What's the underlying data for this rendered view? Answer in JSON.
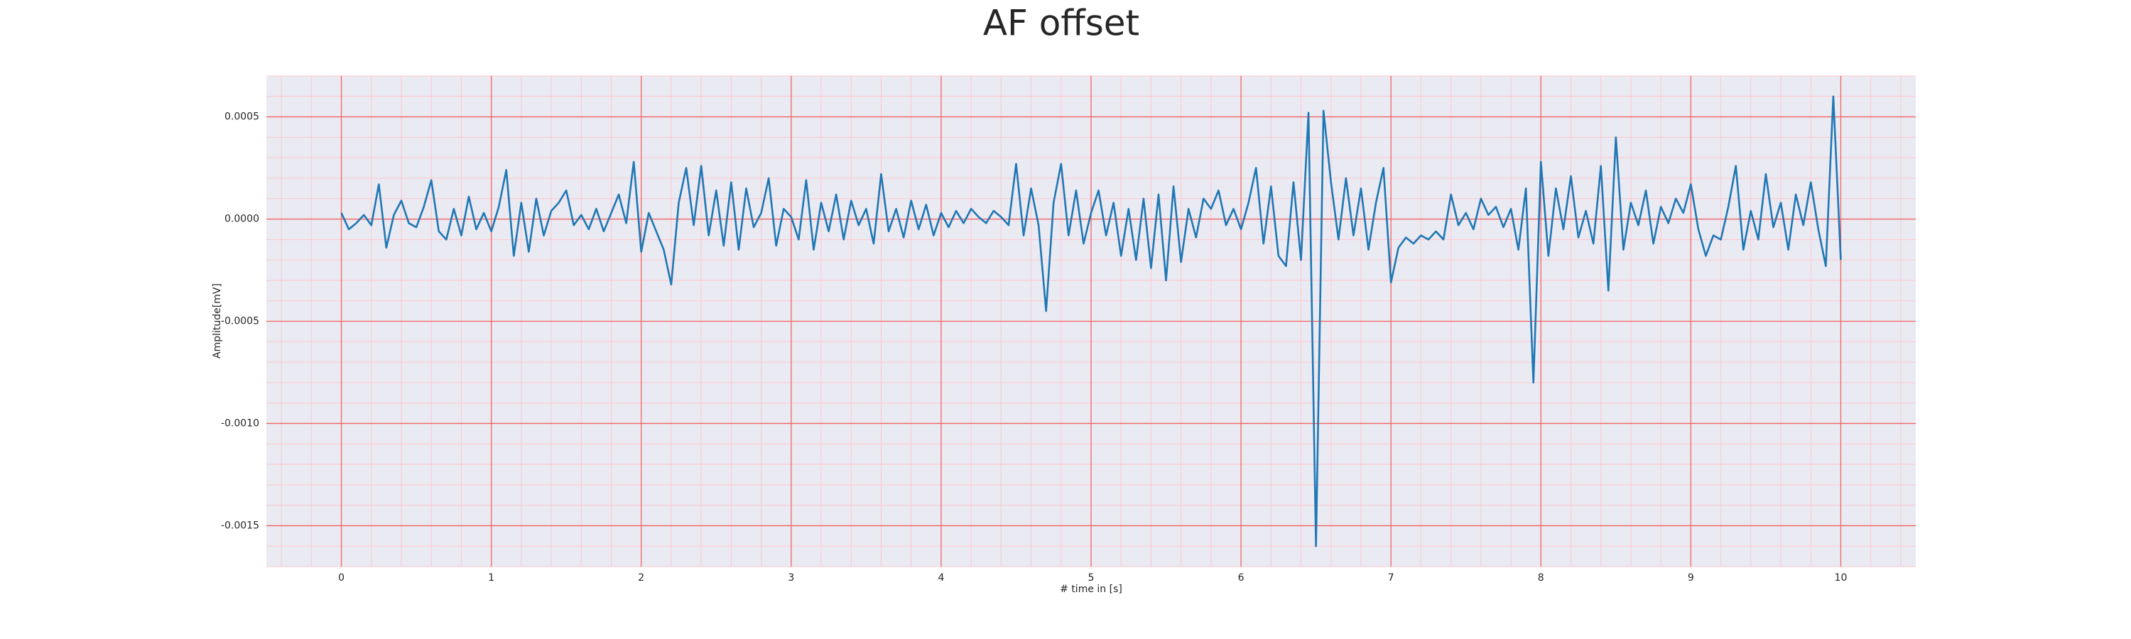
{
  "chart_data": {
    "type": "line",
    "title": "AF offset",
    "xlabel": "# time in [s]",
    "ylabel": "Amplitude[mV]",
    "color": "#1f77b4",
    "grid": true,
    "minor_grid": true,
    "xlim": [
      -0.5,
      10.5
    ],
    "xticks": [
      0,
      1,
      2,
      3,
      4,
      5,
      6,
      7,
      8,
      9,
      10
    ],
    "ylim": [
      -0.0017,
      0.0007
    ],
    "yticks": [
      {
        "value": -0.0015,
        "label": "-0.0015"
      },
      {
        "value": -0.001,
        "label": "-0.0010"
      },
      {
        "value": -0.0005,
        "label": "-0.0005"
      },
      {
        "value": 0,
        "label": "0.0000"
      },
      {
        "value": 0.0005,
        "label": "0.0005"
      }
    ],
    "x": [
      0,
      0.05,
      0.1,
      0.15,
      0.2,
      0.25,
      0.3,
      0.35,
      0.4,
      0.45,
      0.5,
      0.55,
      0.6,
      0.65,
      0.7,
      0.75,
      0.8,
      0.85,
      0.9,
      0.95,
      1,
      1.05,
      1.1,
      1.15,
      1.2,
      1.25,
      1.3,
      1.35,
      1.4,
      1.45,
      1.5,
      1.55,
      1.6,
      1.65,
      1.7,
      1.75,
      1.8,
      1.85,
      1.9,
      1.95,
      2,
      2.05,
      2.1,
      2.15,
      2.2,
      2.25,
      2.3,
      2.35,
      2.4,
      2.45,
      2.5,
      2.55,
      2.6,
      2.65,
      2.7,
      2.75,
      2.8,
      2.85,
      2.9,
      2.95,
      3,
      3.05,
      3.1,
      3.15,
      3.2,
      3.25,
      3.3,
      3.35,
      3.4,
      3.45,
      3.5,
      3.55,
      3.6,
      3.65,
      3.7,
      3.75,
      3.8,
      3.85,
      3.9,
      3.95,
      4,
      4.05,
      4.1,
      4.15,
      4.2,
      4.25,
      4.3,
      4.35,
      4.4,
      4.45,
      4.5,
      4.55,
      4.6,
      4.65,
      4.7,
      4.75,
      4.8,
      4.85,
      4.9,
      4.95,
      5,
      5.05,
      5.1,
      5.15,
      5.2,
      5.25,
      5.3,
      5.35,
      5.4,
      5.45,
      5.5,
      5.55,
      5.6,
      5.65,
      5.7,
      5.75,
      5.8,
      5.85,
      5.9,
      5.95,
      6,
      6.05,
      6.1,
      6.15,
      6.2,
      6.25,
      6.3,
      6.35,
      6.4,
      6.45,
      6.5,
      6.55,
      6.6,
      6.65,
      6.7,
      6.75,
      6.8,
      6.85,
      6.9,
      6.95,
      7,
      7.05,
      7.1,
      7.15,
      7.2,
      7.25,
      7.3,
      7.35,
      7.4,
      7.45,
      7.5,
      7.55,
      7.6,
      7.65,
      7.7,
      7.75,
      7.8,
      7.85,
      7.9,
      7.95,
      8,
      8.05,
      8.1,
      8.15,
      8.2,
      8.25,
      8.3,
      8.35,
      8.4,
      8.45,
      8.5,
      8.55,
      8.6,
      8.65,
      8.7,
      8.75,
      8.8,
      8.85,
      8.9,
      8.95,
      9,
      9.05,
      9.1,
      9.15,
      9.2,
      9.25,
      9.3,
      9.35,
      9.4,
      9.45,
      9.5,
      9.55,
      9.6,
      9.65,
      9.7,
      9.75,
      9.8,
      9.85,
      9.9,
      9.95,
      10
    ],
    "values": [
      3e-05,
      -5e-05,
      -2e-05,
      2e-05,
      -3e-05,
      0.00017,
      -0.00014,
      2e-05,
      9e-05,
      -2e-05,
      -4e-05,
      6e-05,
      0.00019,
      -6e-05,
      -0.0001,
      5e-05,
      -8e-05,
      0.00011,
      -5e-05,
      3e-05,
      -6e-05,
      6e-05,
      0.00024,
      -0.00018,
      8e-05,
      -0.00016,
      0.0001,
      -8e-05,
      4e-05,
      8e-05,
      0.00014,
      -3e-05,
      2e-05,
      -5e-05,
      5e-05,
      -6e-05,
      3e-05,
      0.00012,
      -2e-05,
      0.00028,
      -0.00016,
      3e-05,
      -6e-05,
      -0.00015,
      -0.00032,
      8e-05,
      0.00025,
      -3e-05,
      0.00026,
      -8e-05,
      0.00014,
      -0.00013,
      0.00018,
      -0.00015,
      0.00015,
      -4e-05,
      3e-05,
      0.0002,
      -0.00013,
      5e-05,
      1e-05,
      -0.0001,
      0.00019,
      -0.00015,
      8e-05,
      -6e-05,
      0.00012,
      -0.0001,
      9e-05,
      -3e-05,
      5e-05,
      -0.00012,
      0.00022,
      -6e-05,
      5e-05,
      -9e-05,
      9e-05,
      -5e-05,
      7e-05,
      -8e-05,
      3e-05,
      -4e-05,
      4e-05,
      -2e-05,
      5e-05,
      1e-05,
      -2e-05,
      4e-05,
      1e-05,
      -3e-05,
      0.00027,
      -8e-05,
      0.00015,
      -3e-05,
      -0.00045,
      8e-05,
      0.00027,
      -8e-05,
      0.00014,
      -0.00012,
      3e-05,
      0.00014,
      -8e-05,
      8e-05,
      -0.00018,
      5e-05,
      -0.0002,
      0.0001,
      -0.00024,
      0.00012,
      -0.0003,
      0.00016,
      -0.00021,
      5e-05,
      -9e-05,
      0.0001,
      5e-05,
      0.00014,
      -3e-05,
      5e-05,
      -5e-05,
      8e-05,
      0.00025,
      -0.00012,
      0.00016,
      -0.00018,
      -0.00023,
      0.00018,
      -0.0002,
      0.00052,
      -0.0016,
      0.00053,
      0.00018,
      -0.0001,
      0.0002,
      -8e-05,
      0.00015,
      -0.00015,
      8e-05,
      0.00025,
      -0.00031,
      -0.00014,
      -9e-05,
      -0.00012,
      -8e-05,
      -0.0001,
      -6e-05,
      -0.0001,
      0.00012,
      -3e-05,
      3e-05,
      -5e-05,
      0.0001,
      2e-05,
      6e-05,
      -4e-05,
      5e-05,
      -0.00015,
      0.00015,
      -0.0008,
      0.00028,
      -0.00018,
      0.00015,
      -5e-05,
      0.00021,
      -9e-05,
      4e-05,
      -0.00012,
      0.00026,
      -0.00035,
      0.0004,
      -0.00015,
      8e-05,
      -3e-05,
      0.00014,
      -0.00012,
      6e-05,
      -2e-05,
      0.0001,
      3e-05,
      0.00017,
      -5e-05,
      -0.00018,
      -8e-05,
      -0.0001,
      6e-05,
      0.00026,
      -0.00015,
      4e-05,
      -0.0001,
      0.00022,
      -4e-05,
      8e-05,
      -0.00015,
      0.00012,
      -3e-05,
      0.00018,
      -5e-05,
      -0.00023,
      0.0006,
      -0.0002
    ]
  }
}
